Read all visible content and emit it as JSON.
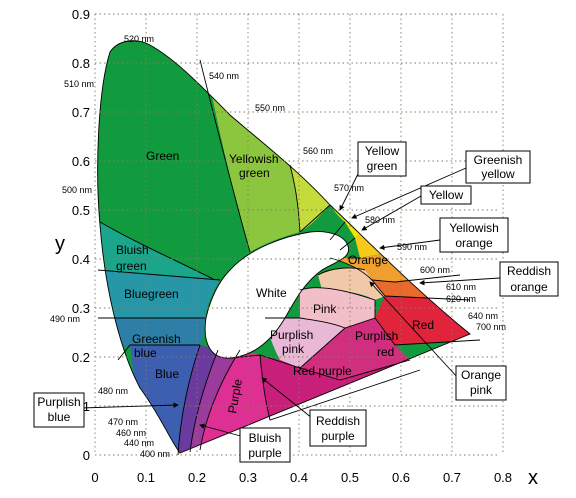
{
  "axes": {
    "x_label": "x",
    "y_label": "y",
    "x_ticks": [
      "0",
      "0.1",
      "0.2",
      "0.3",
      "0.4",
      "0.5",
      "0.6",
      "0.7",
      "0.8"
    ],
    "y_ticks": [
      "0",
      "0.1",
      "0.2",
      "0.3",
      "0.4",
      "0.5",
      "0.6",
      "0.7",
      "0.8",
      "0.9"
    ]
  },
  "wavelength_labels": [
    "520 nm",
    "510 nm",
    "540 nm",
    "550 nm",
    "560 nm",
    "500 nm",
    "570 nm",
    "580 nm",
    "590 nm",
    "600 nm",
    "610 nm",
    "620 nm",
    "640 nm",
    "700 nm",
    "490 nm",
    "480 nm",
    "470 nm",
    "460 nm",
    "440 nm",
    "400 nm"
  ],
  "regions": {
    "green": "Green",
    "yellowish_green": [
      "Yellowish",
      "green"
    ],
    "bluish_green": [
      "Bluish",
      "green"
    ],
    "bluegreen": "Bluegreen",
    "greenish_blue": [
      "Greenish",
      "blue"
    ],
    "blue": "Blue",
    "white": "White",
    "orange": "Orange",
    "pink": "Pink",
    "red": "Red",
    "purplish_pink": [
      "Purplish",
      "pink"
    ],
    "purplish_red": [
      "Purplish",
      "red"
    ],
    "red_purple": "Red purple",
    "purple": "Purple"
  },
  "callouts": {
    "yellow_green": [
      "Yellow",
      "green"
    ],
    "greenish_yellow": [
      "Greenish",
      "yellow"
    ],
    "yellow": "Yellow",
    "yellowish_orange": [
      "Yellowish",
      "orange"
    ],
    "reddish_orange": [
      "Reddish",
      "orange"
    ],
    "orange_pink": [
      "Orange",
      "pink"
    ],
    "reddish_purple": [
      "Reddish",
      "purple"
    ],
    "bluish_purple": [
      "Bluish",
      "purple"
    ],
    "purplish_blue": [
      "Purplish",
      "blue"
    ]
  },
  "colors": {
    "green": "#119a3e",
    "yellowish_green": "#8cc63e",
    "light_green": "#c3dc3c",
    "greenish_yellow": "#d9e21e",
    "yellow": "#f4e600",
    "yellowish_orange": "#f7c91a",
    "orange": "#f0a030",
    "reddish_orange": "#ea6a2e",
    "red": "#e0243c",
    "pink": "#f2bfc8",
    "orange_pink": "#f1c8a8",
    "purplish_pink": "#e9b8d7",
    "purplish_red": "#cf2f7e",
    "red_purple": "#c71f7a",
    "reddish_purple": "#de2f93",
    "purple": "#9b3b9b",
    "bluish_purple": "#6a3a9e",
    "blue": "#3c5fb0",
    "greenish_blue": "#2d7fa7",
    "bluegreen": "#2797a8",
    "bluish_green": "#1ba58a",
    "white": "#ffffff"
  }
}
